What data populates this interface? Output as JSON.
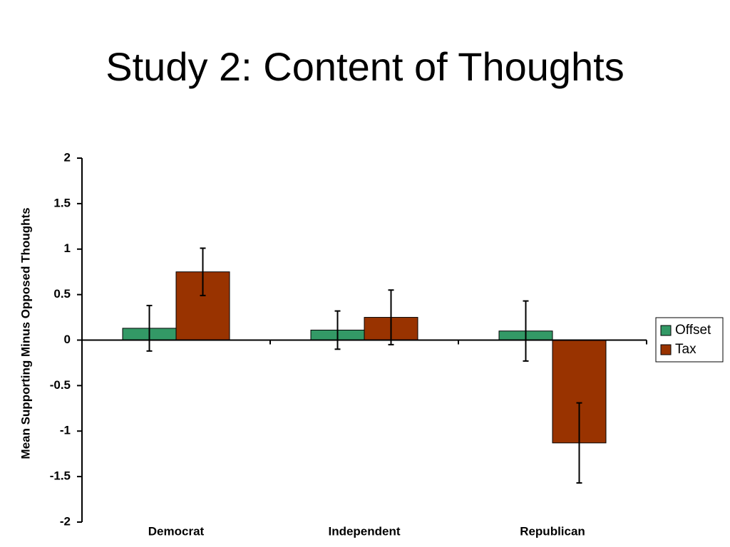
{
  "chart_data": {
    "type": "bar",
    "title": "Study 2: Content of Thoughts",
    "y_label": "Mean Supporting Minus Opposed Thoughts",
    "categories": [
      "Democrat",
      "Independent",
      "Republican"
    ],
    "series": [
      {
        "name": "Offset",
        "color": "#339966",
        "values": [
          0.13,
          0.11,
          0.1
        ],
        "errors": [
          0.25,
          0.21,
          0.33
        ]
      },
      {
        "name": "Tax",
        "color": "#993300",
        "values": [
          0.75,
          0.25,
          -1.13
        ],
        "errors": [
          0.26,
          0.3,
          0.44
        ]
      }
    ],
    "ylim": [
      -2,
      2
    ],
    "yticks": [
      2,
      1.5,
      1,
      0.5,
      0,
      -0.5,
      -1,
      -1.5,
      -2
    ],
    "grid": false,
    "legend": "right"
  }
}
